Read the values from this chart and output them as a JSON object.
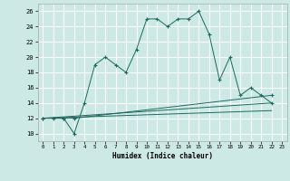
{
  "xlabel": "Humidex (Indice chaleur)",
  "bg_color": "#cce9e5",
  "grid_color": "#ffffff",
  "line_color": "#1a6b5e",
  "xlim": [
    -0.5,
    23.5
  ],
  "ylim": [
    9,
    27
  ],
  "yticks": [
    10,
    12,
    14,
    16,
    18,
    20,
    22,
    24,
    26
  ],
  "xticks": [
    0,
    1,
    2,
    3,
    4,
    5,
    6,
    7,
    8,
    9,
    10,
    11,
    12,
    13,
    14,
    15,
    16,
    17,
    18,
    19,
    20,
    21,
    22,
    23
  ],
  "series1_x": [
    0,
    1,
    2,
    3,
    4,
    5,
    6,
    7,
    8,
    9,
    10,
    11,
    12,
    13,
    14,
    15,
    16,
    17,
    18,
    19,
    20,
    21,
    22
  ],
  "series1_y": [
    12,
    12,
    12,
    10,
    14,
    19,
    20,
    19,
    18,
    21,
    25,
    25,
    24,
    25,
    25,
    26,
    23,
    17,
    20,
    15,
    16,
    15,
    14
  ],
  "series2_x": [
    0,
    2,
    3,
    22
  ],
  "series2_y": [
    12,
    12,
    12,
    15
  ],
  "series3_x": [
    0,
    22
  ],
  "series3_y": [
    12,
    14
  ],
  "series4_x": [
    0,
    22
  ],
  "series4_y": [
    12,
    13
  ]
}
